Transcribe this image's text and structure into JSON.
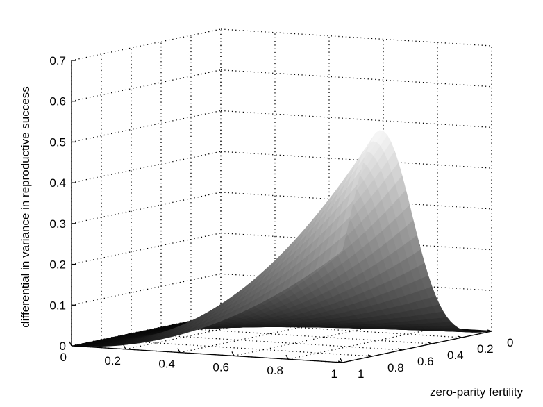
{
  "chart_data": {
    "type": "surface",
    "title": "",
    "zlabel": "differential in variance in reproductive success",
    "ylabel": "zero-parity fertility",
    "xlabel": "",
    "x_ticks": [
      "0",
      "0.2",
      "0.4",
      "0.6",
      "0.8",
      "1"
    ],
    "y_ticks": [
      "0",
      "0.2",
      "0.4",
      "0.6",
      "0.8",
      "1"
    ],
    "z_ticks": [
      "0",
      "0.1",
      "0.2",
      "0.3",
      "0.4",
      "0.5",
      "0.6",
      "0.7"
    ],
    "xlim": [
      0,
      1
    ],
    "ylim": [
      0,
      1
    ],
    "zlim": [
      0,
      0.7
    ],
    "grid": true,
    "colormap": "gray",
    "peak": {
      "x": 1,
      "y": 0.25,
      "z": 0.55
    }
  }
}
